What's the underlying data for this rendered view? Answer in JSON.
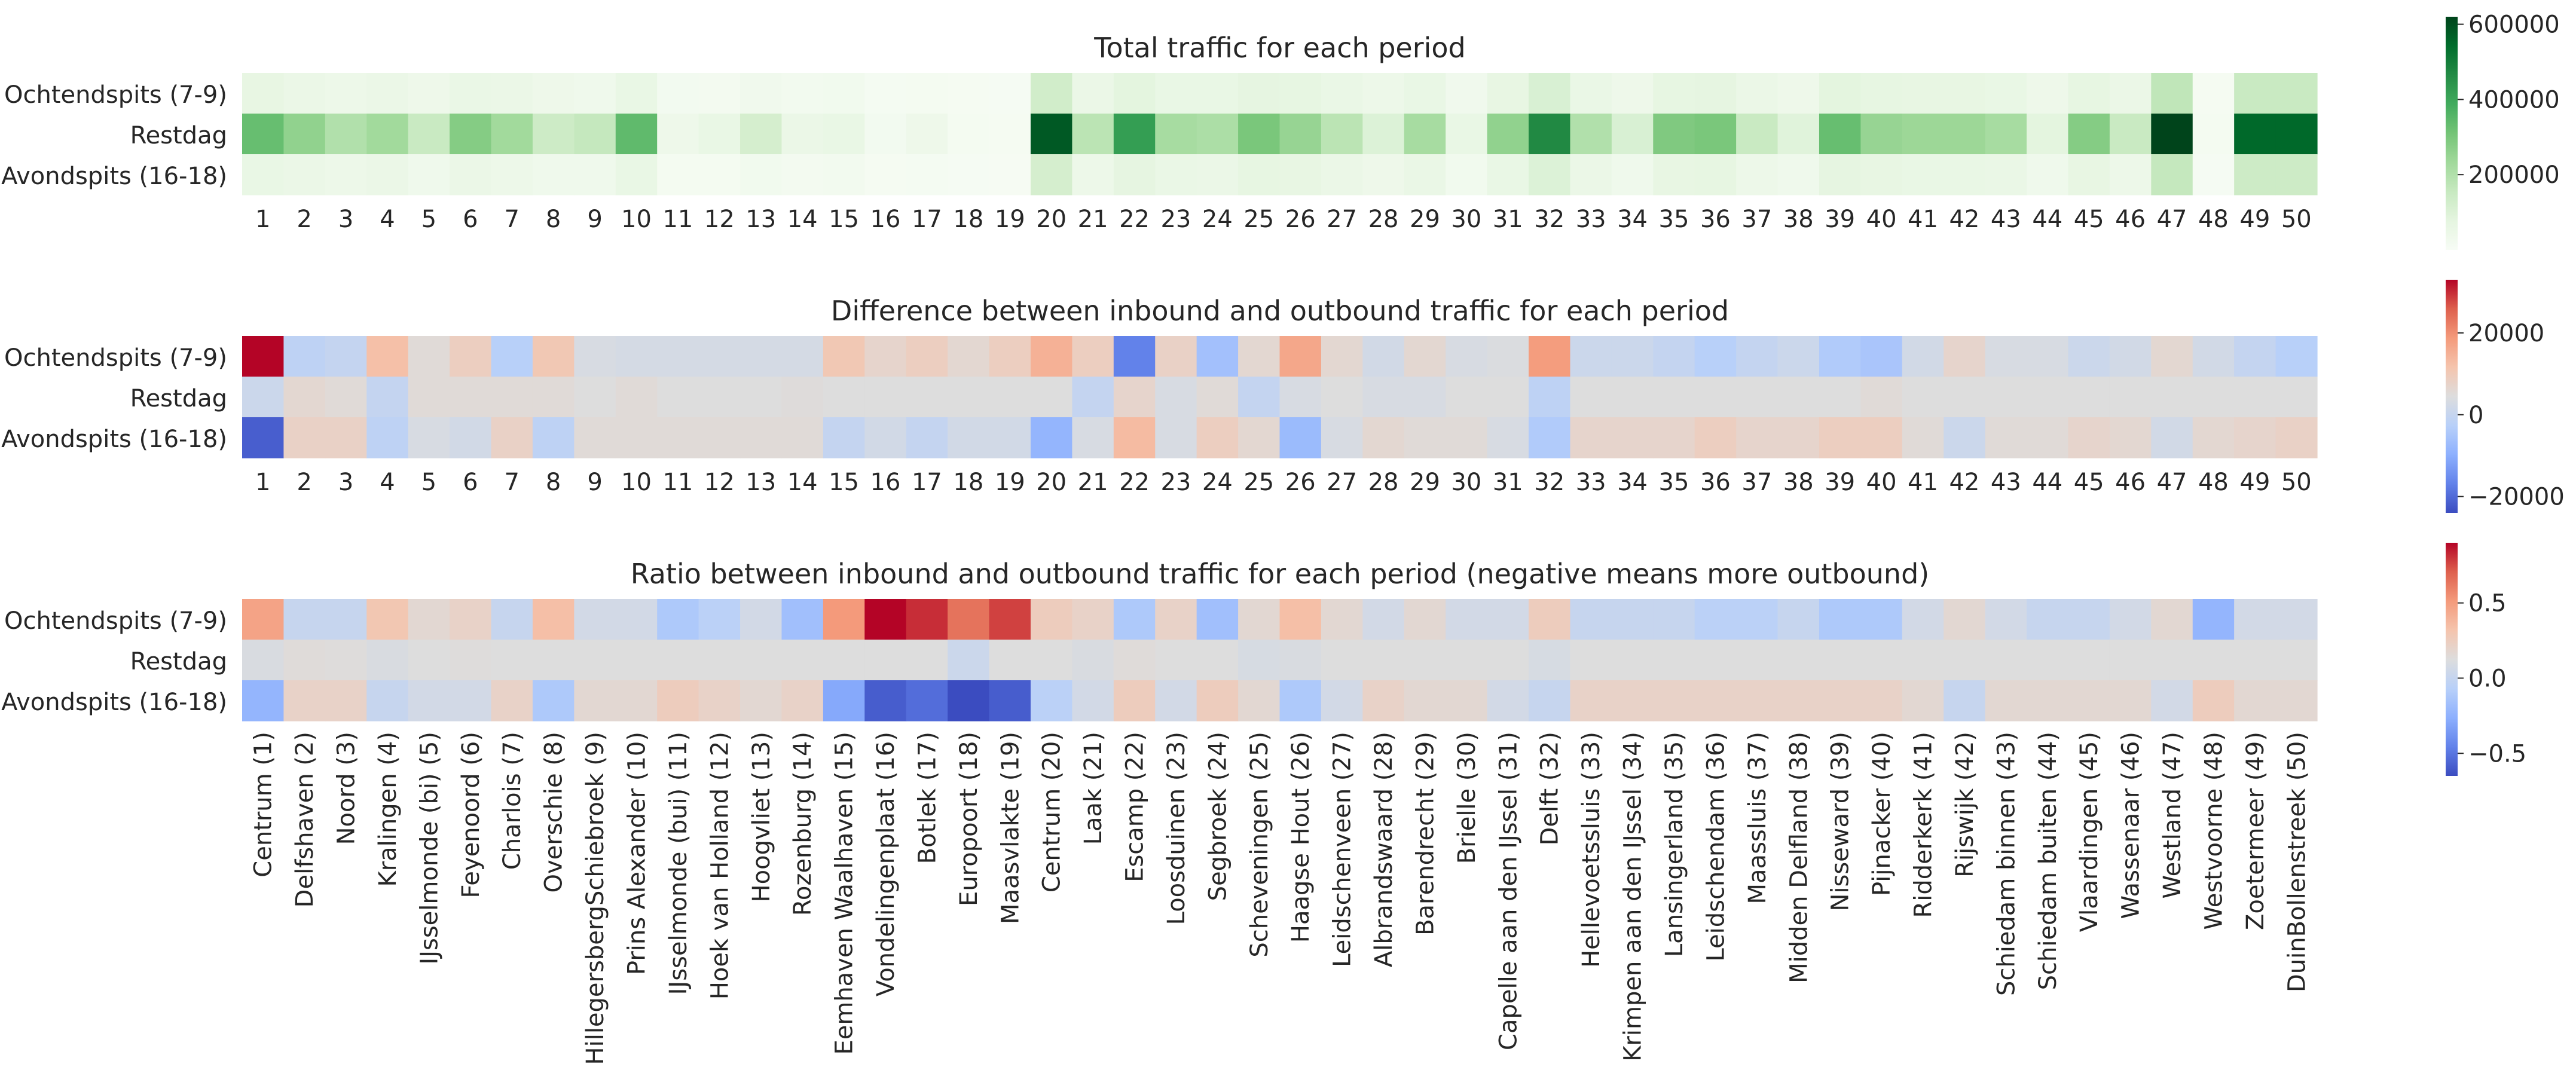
{
  "chart_data": [
    {
      "type": "heatmap",
      "title": "Total traffic for each period",
      "rows": [
        "Ochtendspits (7-9)",
        "Restdag",
        "Avondspits (16-18)"
      ],
      "columns": [
        "1",
        "2",
        "3",
        "4",
        "5",
        "6",
        "7",
        "8",
        "9",
        "10",
        "11",
        "12",
        "13",
        "14",
        "15",
        "16",
        "17",
        "18",
        "19",
        "20",
        "21",
        "22",
        "23",
        "24",
        "25",
        "26",
        "27",
        "28",
        "29",
        "30",
        "31",
        "32",
        "33",
        "34",
        "35",
        "36",
        "37",
        "38",
        "39",
        "40",
        "41",
        "42",
        "43",
        "44",
        "45",
        "46",
        "47",
        "48",
        "49",
        "50"
      ],
      "colormap": "Greens",
      "vmin": 0,
      "vmax": 620000,
      "colorbar_ticks": [
        200000,
        400000,
        600000
      ],
      "colorbar_tick_labels": [
        "200000",
        "400000",
        "600000"
      ],
      "values": [
        [
          65000,
          50000,
          45000,
          50000,
          40000,
          55000,
          50000,
          40000,
          35000,
          60000,
          20000,
          18000,
          30000,
          22000,
          25000,
          12000,
          15000,
          10000,
          8000,
          130000,
          50000,
          80000,
          60000,
          60000,
          75000,
          70000,
          55000,
          45000,
          60000,
          30000,
          65000,
          110000,
          55000,
          40000,
          70000,
          75000,
          50000,
          40000,
          80000,
          70000,
          65000,
          65000,
          60000,
          40000,
          70000,
          50000,
          170000,
          10000,
          150000,
          150000
        ],
        [
          330000,
          260000,
          200000,
          230000,
          150000,
          280000,
          230000,
          140000,
          160000,
          340000,
          40000,
          60000,
          120000,
          50000,
          60000,
          20000,
          40000,
          15000,
          10000,
          580000,
          180000,
          420000,
          220000,
          210000,
          300000,
          250000,
          180000,
          100000,
          220000,
          60000,
          260000,
          470000,
          200000,
          110000,
          290000,
          300000,
          150000,
          90000,
          330000,
          250000,
          240000,
          240000,
          220000,
          80000,
          280000,
          150000,
          620000,
          15000,
          550000,
          550000
        ],
        [
          60000,
          50000,
          45000,
          50000,
          35000,
          50000,
          45000,
          35000,
          35000,
          60000,
          15000,
          15000,
          25000,
          18000,
          22000,
          10000,
          12000,
          8000,
          6000,
          120000,
          45000,
          75000,
          55000,
          50000,
          70000,
          65000,
          50000,
          40000,
          55000,
          25000,
          60000,
          100000,
          50000,
          35000,
          65000,
          70000,
          45000,
          35000,
          75000,
          65000,
          60000,
          60000,
          55000,
          35000,
          65000,
          45000,
          160000,
          8000,
          140000,
          140000
        ]
      ]
    },
    {
      "type": "heatmap",
      "title": "Difference between inbound and outbound traffic for each period",
      "rows": [
        "Ochtendspits (7-9)",
        "Restdag",
        "Avondspits (16-18)"
      ],
      "columns": [
        "1",
        "2",
        "3",
        "4",
        "5",
        "6",
        "7",
        "8",
        "9",
        "10",
        "11",
        "12",
        "13",
        "14",
        "15",
        "16",
        "17",
        "18",
        "19",
        "20",
        "21",
        "22",
        "23",
        "24",
        "25",
        "26",
        "27",
        "28",
        "29",
        "30",
        "31",
        "32",
        "33",
        "34",
        "35",
        "36",
        "37",
        "38",
        "39",
        "40",
        "41",
        "42",
        "43",
        "44",
        "45",
        "46",
        "47",
        "48",
        "49",
        "50"
      ],
      "colormap": "coolwarm",
      "vmin": -24000,
      "vmax": 33000,
      "center": 0,
      "colorbar_ticks": [
        -20000,
        0,
        20000
      ],
      "colorbar_tick_labels": [
        "−20000",
        "0",
        "20000"
      ],
      "values": [
        [
          33000,
          -5000,
          -4000,
          9000,
          1000,
          5000,
          -6000,
          7000,
          -1000,
          -1500,
          -1500,
          -1500,
          -1500,
          -1500,
          7000,
          3000,
          5000,
          2000,
          5000,
          12000,
          5000,
          -18000,
          4000,
          -9000,
          2000,
          14000,
          2000,
          -2000,
          2000,
          -1000,
          -500,
          16000,
          -3000,
          -3000,
          -4000,
          -6000,
          -4000,
          -3000,
          -7000,
          -8000,
          -2000,
          3000,
          -1000,
          -1000,
          -3000,
          -2000,
          2000,
          -2000,
          -4000,
          -6000
        ],
        [
          -3000,
          2000,
          1000,
          -4000,
          1000,
          1000,
          1000,
          1000,
          0,
          1000,
          0,
          0,
          0,
          500,
          0,
          0,
          0,
          0,
          0,
          0,
          -4000,
          3000,
          -1000,
          1000,
          -4000,
          -1000,
          0,
          -1000,
          -1000,
          0,
          0,
          -5000,
          0,
          0,
          0,
          0,
          0,
          0,
          0,
          1000,
          0,
          0,
          0,
          0,
          0,
          0,
          0,
          0,
          0,
          0
        ],
        [
          -22000,
          4000,
          4000,
          -5000,
          -1000,
          -2000,
          4000,
          -5000,
          1000,
          1000,
          1000,
          1000,
          1000,
          1000,
          -4000,
          -2000,
          -4000,
          -2000,
          -2000,
          -11000,
          -1000,
          10000,
          -1000,
          5000,
          2000,
          -10000,
          -1000,
          2000,
          1000,
          1000,
          -1000,
          -7000,
          3000,
          3000,
          3000,
          5000,
          3000,
          3000,
          5000,
          5000,
          1000,
          -3000,
          1000,
          1000,
          3000,
          2000,
          -2000,
          2000,
          3000,
          4000
        ]
      ]
    },
    {
      "type": "heatmap",
      "title": "Ratio between inbound and outbound traffic for each period (negative means more outbound)",
      "rows": [
        "Ochtendspits (7-9)",
        "Restdag",
        "Avondspits (16-18)"
      ],
      "columns": [
        "Centrum (1)",
        "Delfshaven (2)",
        "Noord (3)",
        "Kralingen (4)",
        "IJsselmonde (bi) (5)",
        "Feyenoord (6)",
        "Charlois (7)",
        "Overschie (8)",
        "HillegersbergSchiebroek (9)",
        "Prins Alexander (10)",
        "IJsselmonde (bui) (11)",
        "Hoek van Holland (12)",
        "Hoogvliet (13)",
        "Rozenburg (14)",
        "Eemhaven Waalhaven (15)",
        "Vondelingenplaat (16)",
        "Botlek (17)",
        "Europoort (18)",
        "Maasvlakte (19)",
        "Centrum (20)",
        "Laak (21)",
        "Escamp (22)",
        "Loosduinen (23)",
        "Segbroek (24)",
        "Scheveningen (25)",
        "Haagse Hout (26)",
        "Leidschenveen (27)",
        "Albrandswaard (28)",
        "Barendrecht (29)",
        "Brielle (30)",
        "Capelle aan den IJssel (31)",
        "Delft (32)",
        "Hellevoetssluis (33)",
        "Krimpen aan den IJssel (34)",
        "Lansingerland (35)",
        "Leidschendam (36)",
        "Maassluis (37)",
        "Midden Delfland (38)",
        "Nisseward (39)",
        "Pijnacker (40)",
        "Ridderkerk (41)",
        "Rijswijk (42)",
        "Schiedam binnen (43)",
        "Schiedam buiten (44)",
        "Vlaardingen (45)",
        "Wassenaar (46)",
        "Westland (47)",
        "Westvoorne (48)",
        "Zoetermeer (49)",
        "DuinBollenstreek (50)"
      ],
      "colormap": "coolwarm",
      "vmin": -0.65,
      "vmax": 0.9,
      "center": 0,
      "colorbar_ticks": [
        -0.5,
        0.0,
        0.5
      ],
      "colorbar_tick_labels": [
        "−0.5",
        "0.0",
        "0.5"
      ],
      "values": [
        [
          0.4,
          -0.1,
          -0.1,
          0.2,
          0.05,
          0.1,
          -0.1,
          0.25,
          -0.05,
          -0.05,
          -0.2,
          -0.15,
          -0.05,
          -0.25,
          0.45,
          0.9,
          0.8,
          0.6,
          0.75,
          0.15,
          0.1,
          -0.2,
          0.1,
          -0.25,
          0.05,
          0.25,
          0.05,
          -0.05,
          0.05,
          -0.05,
          -0.05,
          0.15,
          -0.1,
          -0.1,
          -0.1,
          -0.15,
          -0.15,
          -0.1,
          -0.2,
          -0.2,
          -0.05,
          0.05,
          -0.05,
          -0.1,
          -0.1,
          -0.05,
          0.05,
          -0.3,
          -0.05,
          -0.05
        ],
        [
          -0.02,
          0.02,
          0.01,
          -0.02,
          0,
          0.01,
          0,
          0,
          0,
          0,
          0,
          0,
          0,
          0,
          0,
          0,
          0,
          -0.08,
          0,
          0,
          -0.02,
          0.02,
          0,
          0,
          -0.03,
          -0.02,
          0,
          0,
          0,
          0,
          0,
          -0.03,
          0,
          0,
          0,
          0,
          0,
          0,
          0,
          0,
          0,
          0,
          0,
          0,
          0,
          0,
          0,
          0,
          0,
          0
        ],
        [
          -0.3,
          0.1,
          0.1,
          -0.1,
          -0.05,
          -0.05,
          0.1,
          -0.2,
          0.05,
          0.05,
          0.15,
          0.1,
          0.05,
          0.1,
          -0.35,
          -0.6,
          -0.55,
          -0.65,
          -0.6,
          -0.15,
          -0.05,
          0.15,
          -0.05,
          0.15,
          0.05,
          -0.2,
          -0.05,
          0.1,
          0.05,
          0.05,
          -0.05,
          -0.1,
          0.1,
          0.1,
          0.1,
          0.1,
          0.1,
          0.1,
          0.1,
          0.1,
          0.05,
          -0.1,
          0.05,
          0.05,
          0.05,
          0.05,
          -0.05,
          0.15,
          0.05,
          0.05
        ]
      ]
    }
  ]
}
